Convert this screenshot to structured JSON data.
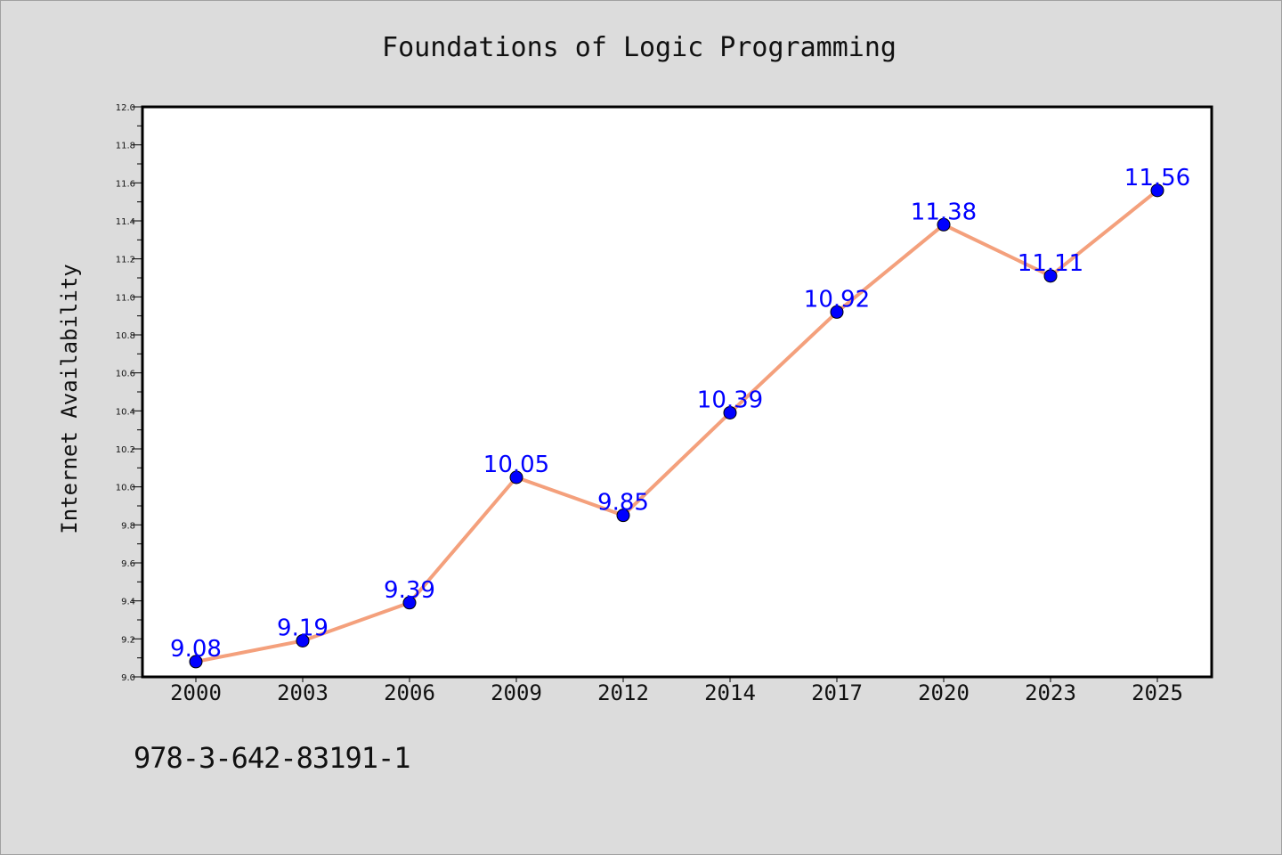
{
  "chart_data": {
    "type": "line",
    "title": "Foundations of Logic Programming",
    "xlabel": "",
    "ylabel": "Internet Availability",
    "categories": [
      "2000",
      "2003",
      "2006",
      "2009",
      "2012",
      "2014",
      "2017",
      "2020",
      "2023",
      "2025"
    ],
    "series": [
      {
        "values": [
          9.08,
          9.19,
          9.39,
          10.05,
          9.85,
          10.39,
          10.92,
          11.38,
          11.11,
          11.56
        ],
        "data_labels": [
          "9.08",
          "9.19",
          "9.39",
          "10.05",
          "9.85",
          "10.39",
          "10.92",
          "11.38",
          "11.11",
          "11.56"
        ]
      }
    ],
    "ylim": [
      9.0,
      12.0
    ],
    "yticks": [
      "9.0",
      "9.2",
      "9.4",
      "9.6",
      "9.8",
      "10.0",
      "10.2",
      "10.4",
      "10.6",
      "10.8",
      "11.0",
      "11.2",
      "11.4",
      "11.6",
      "11.8",
      "12.0"
    ],
    "grid": false,
    "legend": "none",
    "colors": {
      "line": "#f4a07c",
      "marker": "#0000ff",
      "label": "#0000ff",
      "background": "#dcdcdc",
      "plot_area": "#ffffff"
    }
  },
  "caption": "978-3-642-83191-1"
}
